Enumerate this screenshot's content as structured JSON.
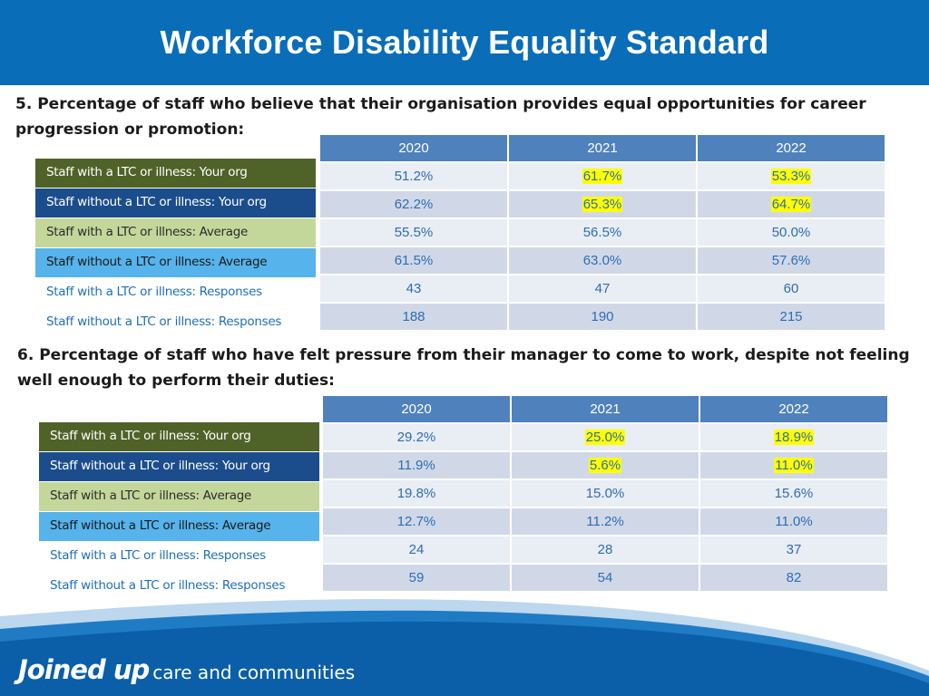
{
  "title": "Workforce Disability Equality Standard",
  "colors": {
    "header": "#0a6db8",
    "table_header": "#4f81bd",
    "highlight": "#ffff00",
    "value_text": "#2e6db4"
  },
  "legend_labels": [
    "Staff with a LTC or illness: Your org",
    "Staff without a LTC or illness: Your org",
    "Staff with a LTC or illness: Average",
    "Staff without a LTC or illness: Average",
    "Staff with a LTC or illness: Responses",
    "Staff without a LTC or illness: Responses"
  ],
  "q5": {
    "title": "5. Percentage of staff who believe that their organisation provides equal opportunities for career progression or promotion:",
    "headers": [
      "2020",
      "2021",
      "2022"
    ],
    "rows": [
      [
        "51.2%",
        "61.7%",
        "53.3%"
      ],
      [
        "62.2%",
        "65.3%",
        "64.7%"
      ],
      [
        "55.5%",
        "56.5%",
        "50.0%"
      ],
      [
        "61.5%",
        "63.0%",
        "57.6%"
      ],
      [
        "43",
        "47",
        "60"
      ],
      [
        "188",
        "190",
        "215"
      ]
    ]
  },
  "q6": {
    "title": "6. Percentage of staff who have felt pressure from their manager to come to work, despite not feeling well enough to perform their duties:",
    "headers": [
      "2020",
      "2021",
      "2022"
    ],
    "rows": [
      [
        "29.2%",
        "25.0%",
        "18.9%"
      ],
      [
        "11.9%",
        "5.6%",
        "11.0%"
      ],
      [
        "19.8%",
        "15.0%",
        "15.6%"
      ],
      [
        "12.7%",
        "11.2%",
        "11.0%"
      ],
      [
        "24",
        "28",
        "37"
      ],
      [
        "59",
        "54",
        "82"
      ]
    ]
  },
  "footer": {
    "logo_bold": "Joined up",
    "logo_rest": "care and communities"
  }
}
